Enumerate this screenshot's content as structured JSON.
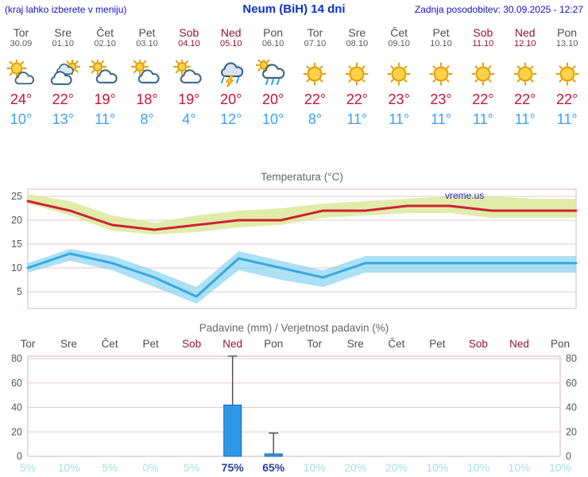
{
  "header": {
    "hint": "(kraj lahko izberete v meniju)",
    "title": "Neum (BiH) 14 dni",
    "updated": "Zadnja posodobitev: 30.09.2025 - 12:27"
  },
  "watermark": "vreme.us",
  "days": [
    {
      "name": "Tor",
      "date": "30.09",
      "weekend": false,
      "icon": "mostly-sunny",
      "tmax": "24°",
      "tmin": "10°"
    },
    {
      "name": "Sre",
      "date": "01.10",
      "weekend": false,
      "icon": "cloudy",
      "tmax": "22°",
      "tmin": "13°"
    },
    {
      "name": "Čet",
      "date": "02.10",
      "weekend": false,
      "icon": "partly-cloudy",
      "tmax": "19°",
      "tmin": "11°"
    },
    {
      "name": "Pet",
      "date": "03.10",
      "weekend": false,
      "icon": "partly-cloudy",
      "tmax": "18°",
      "tmin": "8°"
    },
    {
      "name": "Sob",
      "date": "04.10",
      "weekend": true,
      "icon": "partly-cloudy",
      "tmax": "19°",
      "tmin": "4°"
    },
    {
      "name": "Ned",
      "date": "05.10",
      "weekend": true,
      "icon": "thunderstorm",
      "tmax": "20°",
      "tmin": "12°"
    },
    {
      "name": "Pon",
      "date": "06.10",
      "weekend": false,
      "icon": "rain",
      "tmax": "20°",
      "tmin": "10°"
    },
    {
      "name": "Tor",
      "date": "07.10",
      "weekend": false,
      "icon": "sunny",
      "tmax": "22°",
      "tmin": "8°"
    },
    {
      "name": "Sre",
      "date": "08.10",
      "weekend": false,
      "icon": "sunny",
      "tmax": "22°",
      "tmin": "11°"
    },
    {
      "name": "Čet",
      "date": "09.10",
      "weekend": false,
      "icon": "sunny",
      "tmax": "23°",
      "tmin": "11°"
    },
    {
      "name": "Pet",
      "date": "10.10",
      "weekend": false,
      "icon": "sunny",
      "tmax": "23°",
      "tmin": "11°"
    },
    {
      "name": "Sob",
      "date": "11.10",
      "weekend": true,
      "icon": "sunny",
      "tmax": "22°",
      "tmin": "11°"
    },
    {
      "name": "Ned",
      "date": "12.10",
      "weekend": true,
      "icon": "sunny",
      "tmax": "22°",
      "tmin": "11°"
    },
    {
      "name": "Pon",
      "date": "13.10",
      "weekend": false,
      "icon": "sunny",
      "tmax": "22°",
      "tmin": "11°"
    }
  ],
  "chart_data": [
    {
      "type": "line",
      "title": "Temperatura (°C)",
      "categories": [
        "Tor",
        "Sre",
        "Čet",
        "Pet",
        "Sob",
        "Ned",
        "Pon",
        "Tor",
        "Sre",
        "Čet",
        "Pet",
        "Sob",
        "Ned",
        "Pon"
      ],
      "yticks": [
        5,
        10,
        15,
        20,
        25
      ],
      "yrange": [
        1.5,
        26.5
      ],
      "grid": true,
      "legend": "none",
      "series": [
        {
          "name": "tmax",
          "values": [
            24,
            22,
            19,
            18,
            19,
            20,
            20,
            22,
            22,
            23,
            23,
            22,
            22,
            22
          ]
        },
        {
          "name": "tmin",
          "values": [
            10,
            13,
            11,
            8,
            4,
            12,
            10,
            8,
            11,
            11,
            11,
            11,
            11,
            11
          ]
        }
      ],
      "bands": [
        {
          "name": "tmax-range",
          "upper": [
            25.5,
            24,
            21,
            19.5,
            21,
            22,
            22.5,
            23.5,
            24,
            24.5,
            25,
            25,
            24.5,
            24.5
          ],
          "lower": [
            23.5,
            21,
            17.8,
            17,
            17.5,
            18.5,
            19,
            20.5,
            21,
            21.5,
            21.5,
            20.5,
            20.5,
            20.5
          ]
        },
        {
          "name": "tmin-range",
          "upper": [
            11,
            14,
            12.5,
            9.5,
            6,
            13.5,
            11.5,
            9.5,
            12.5,
            12.5,
            12.5,
            12.5,
            12.5,
            12.5
          ],
          "lower": [
            9,
            11.5,
            9.5,
            6,
            2.5,
            9.5,
            7.5,
            6,
            9,
            9,
            9,
            9,
            9,
            9
          ]
        }
      ]
    },
    {
      "type": "bar",
      "title": "Padavine (mm) / Verjetnost padavin (%)",
      "categories": [
        "Tor",
        "Sre",
        "Čet",
        "Pet",
        "Sob",
        "Ned",
        "Pon",
        "Tor",
        "Sre",
        "Čet",
        "Pet",
        "Sob",
        "Ned",
        "Pon"
      ],
      "weekend_index": [
        4,
        5,
        11,
        12
      ],
      "values": [
        0,
        0,
        0,
        0,
        0,
        42,
        2,
        0,
        0,
        0,
        0,
        0,
        0,
        0
      ],
      "whisker_high": [
        0,
        0,
        0,
        0,
        0,
        83,
        19,
        0,
        0,
        0,
        0,
        0,
        0,
        0
      ],
      "probabilities_pct": [
        5,
        10,
        5,
        0,
        5,
        75,
        65,
        10,
        20,
        20,
        10,
        10,
        10,
        10
      ],
      "yticks": [
        0,
        20,
        40,
        60,
        80
      ],
      "yrange": [
        0,
        82
      ],
      "grid": true
    }
  ],
  "colors": {
    "header_blue": "#1111cc",
    "title_blue": "#0a33cc",
    "day_gray": "#4d4d4d",
    "date_gray": "#5a5a5a",
    "weekend_red": "#991133",
    "tmax_red": "#cc1133",
    "tmin_blue": "#3aa0ff",
    "chart_title_gray": "#666666",
    "tick_gray": "#555555",
    "grid_pink": "#f2c3ce",
    "frame_pink": "#dfb2be",
    "band_max_fill": "#dbe795",
    "band_min_fill": "#7fd0ef",
    "line_max": "#cc2233",
    "line_min": "#35a8e0",
    "bar_fill": "#2f97e8",
    "bar_stroke": "#1565b0",
    "whisker_gray": "#555555",
    "prob_low": "#a5dde9",
    "prob_high": "#2b3f9e",
    "watermark_blue": "#2222cc"
  }
}
